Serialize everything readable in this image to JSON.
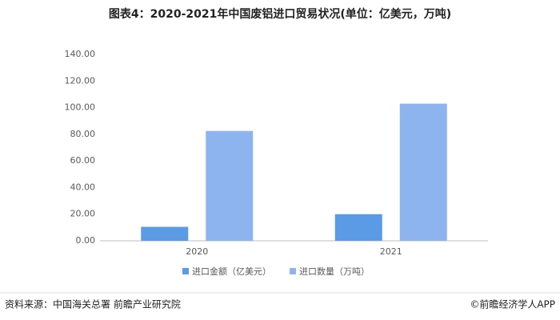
{
  "chart_data": {
    "type": "bar",
    "title": "图表4：2020-2021年中国废铝进口贸易状况(单位：亿美元，万吨)",
    "categories": [
      "2020",
      "2021"
    ],
    "series": [
      {
        "name": "进口金额（亿美元）",
        "color": "#5b9be6",
        "values": [
          10.5,
          20
        ]
      },
      {
        "name": "进口数量（万吨）",
        "color": "#8db4ee",
        "values": [
          82.5,
          103
        ]
      }
    ],
    "ylim": [
      0,
      140
    ],
    "yticks": [
      {
        "value": 0,
        "label": "0.00"
      },
      {
        "value": 20,
        "label": "20.00"
      },
      {
        "value": 40,
        "label": "40.00"
      },
      {
        "value": 60,
        "label": "60.00"
      },
      {
        "value": 80,
        "label": "80.00"
      },
      {
        "value": 100,
        "label": "100.00"
      },
      {
        "value": 120,
        "label": "120.00"
      },
      {
        "value": 140,
        "label": "140.00"
      }
    ],
    "grid": false,
    "legend": "bottom",
    "source": "资料来源：中国海关总署 前瞻产业研究院",
    "credit": "©前瞻经济学人APP"
  }
}
